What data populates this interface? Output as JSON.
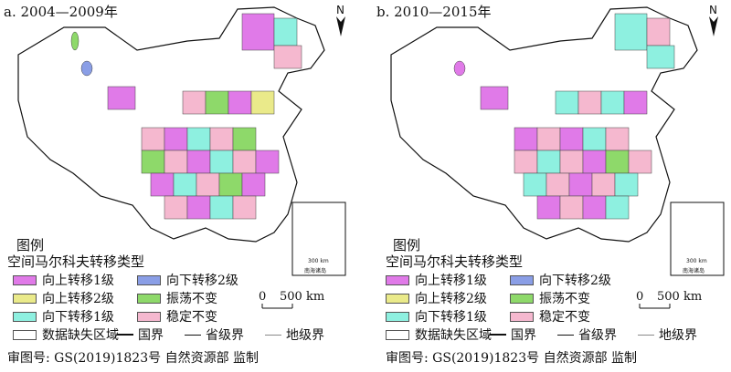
{
  "panels": [
    {
      "title": "a. 2004—2009年"
    },
    {
      "title": "b. 2010—2015年"
    }
  ],
  "legend": {
    "title": "图例",
    "subtitle": "空间马尔科夫转移类型",
    "items": [
      {
        "label": "向上转移1级",
        "color": "#e07ae8"
      },
      {
        "label": "向下转移2级",
        "color": "#8a9ee6"
      },
      {
        "label": "向上转移2级",
        "color": "#eaea8a"
      },
      {
        "label": "振荡不变",
        "color": "#8ed96a"
      },
      {
        "label": "向下转移1级",
        "color": "#8ef0e0"
      },
      {
        "label": "稳定不变",
        "color": "#f5b8cf"
      },
      {
        "label": "数据缺失区域",
        "color": "#ffffff"
      }
    ],
    "boundaries": {
      "national": "国界",
      "provincial": "省级界",
      "prefecture": "地级界"
    }
  },
  "scale": {
    "zero": "0",
    "distance": "500 km"
  },
  "north": "N",
  "inset": {
    "scale": "300 km",
    "label": "南海诸岛"
  },
  "approval": "审图号: GS(2019)1823号 自然资源部 监制"
}
